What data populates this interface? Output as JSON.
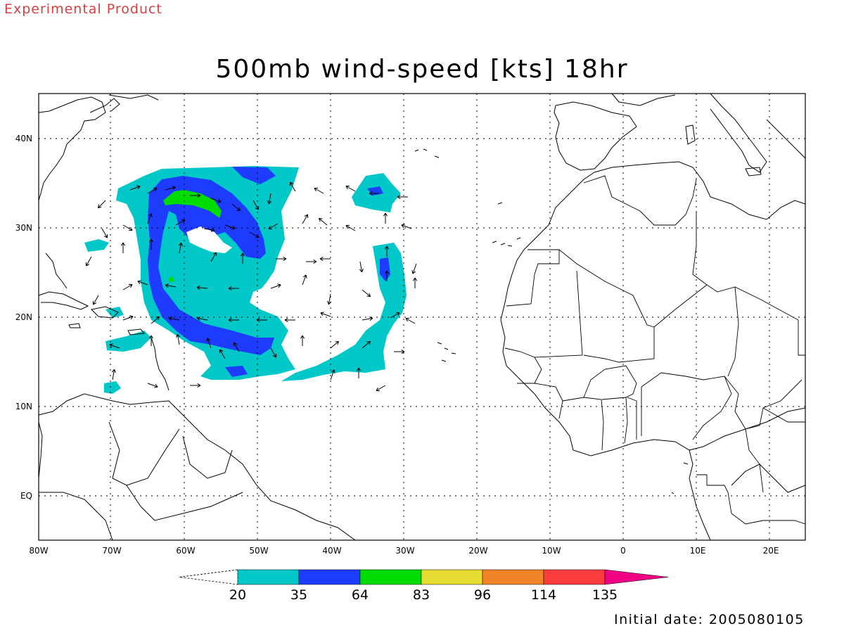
{
  "header": {
    "experimental_label": "Experimental Product",
    "title": "500mb wind-speed [kts] 18hr",
    "initial_date": "Initial date: 2005080105"
  },
  "map": {
    "region": "Tropical Atlantic / West Africa",
    "lon_range": [
      -80,
      25
    ],
    "lat_range": [
      -5,
      45
    ],
    "x_ticks": [
      "80W",
      "70W",
      "60W",
      "50W",
      "40W",
      "30W",
      "20W",
      "10W",
      "0",
      "10E",
      "20E"
    ],
    "y_ticks": [
      "40N",
      "30N",
      "20N",
      "10N",
      "EQ"
    ],
    "grid": "dotted",
    "features": [
      "coastlines",
      "country-borders",
      "wind-vectors",
      "shaded-wind-speed"
    ]
  },
  "colorbar": {
    "labels": [
      "20",
      "35",
      "64",
      "83",
      "96",
      "114",
      "135"
    ],
    "colors": [
      "#00c8c8",
      "#1e3cff",
      "#00dc00",
      "#e6dc32",
      "#f08228",
      "#fa3c3c",
      "#f00082"
    ]
  }
}
